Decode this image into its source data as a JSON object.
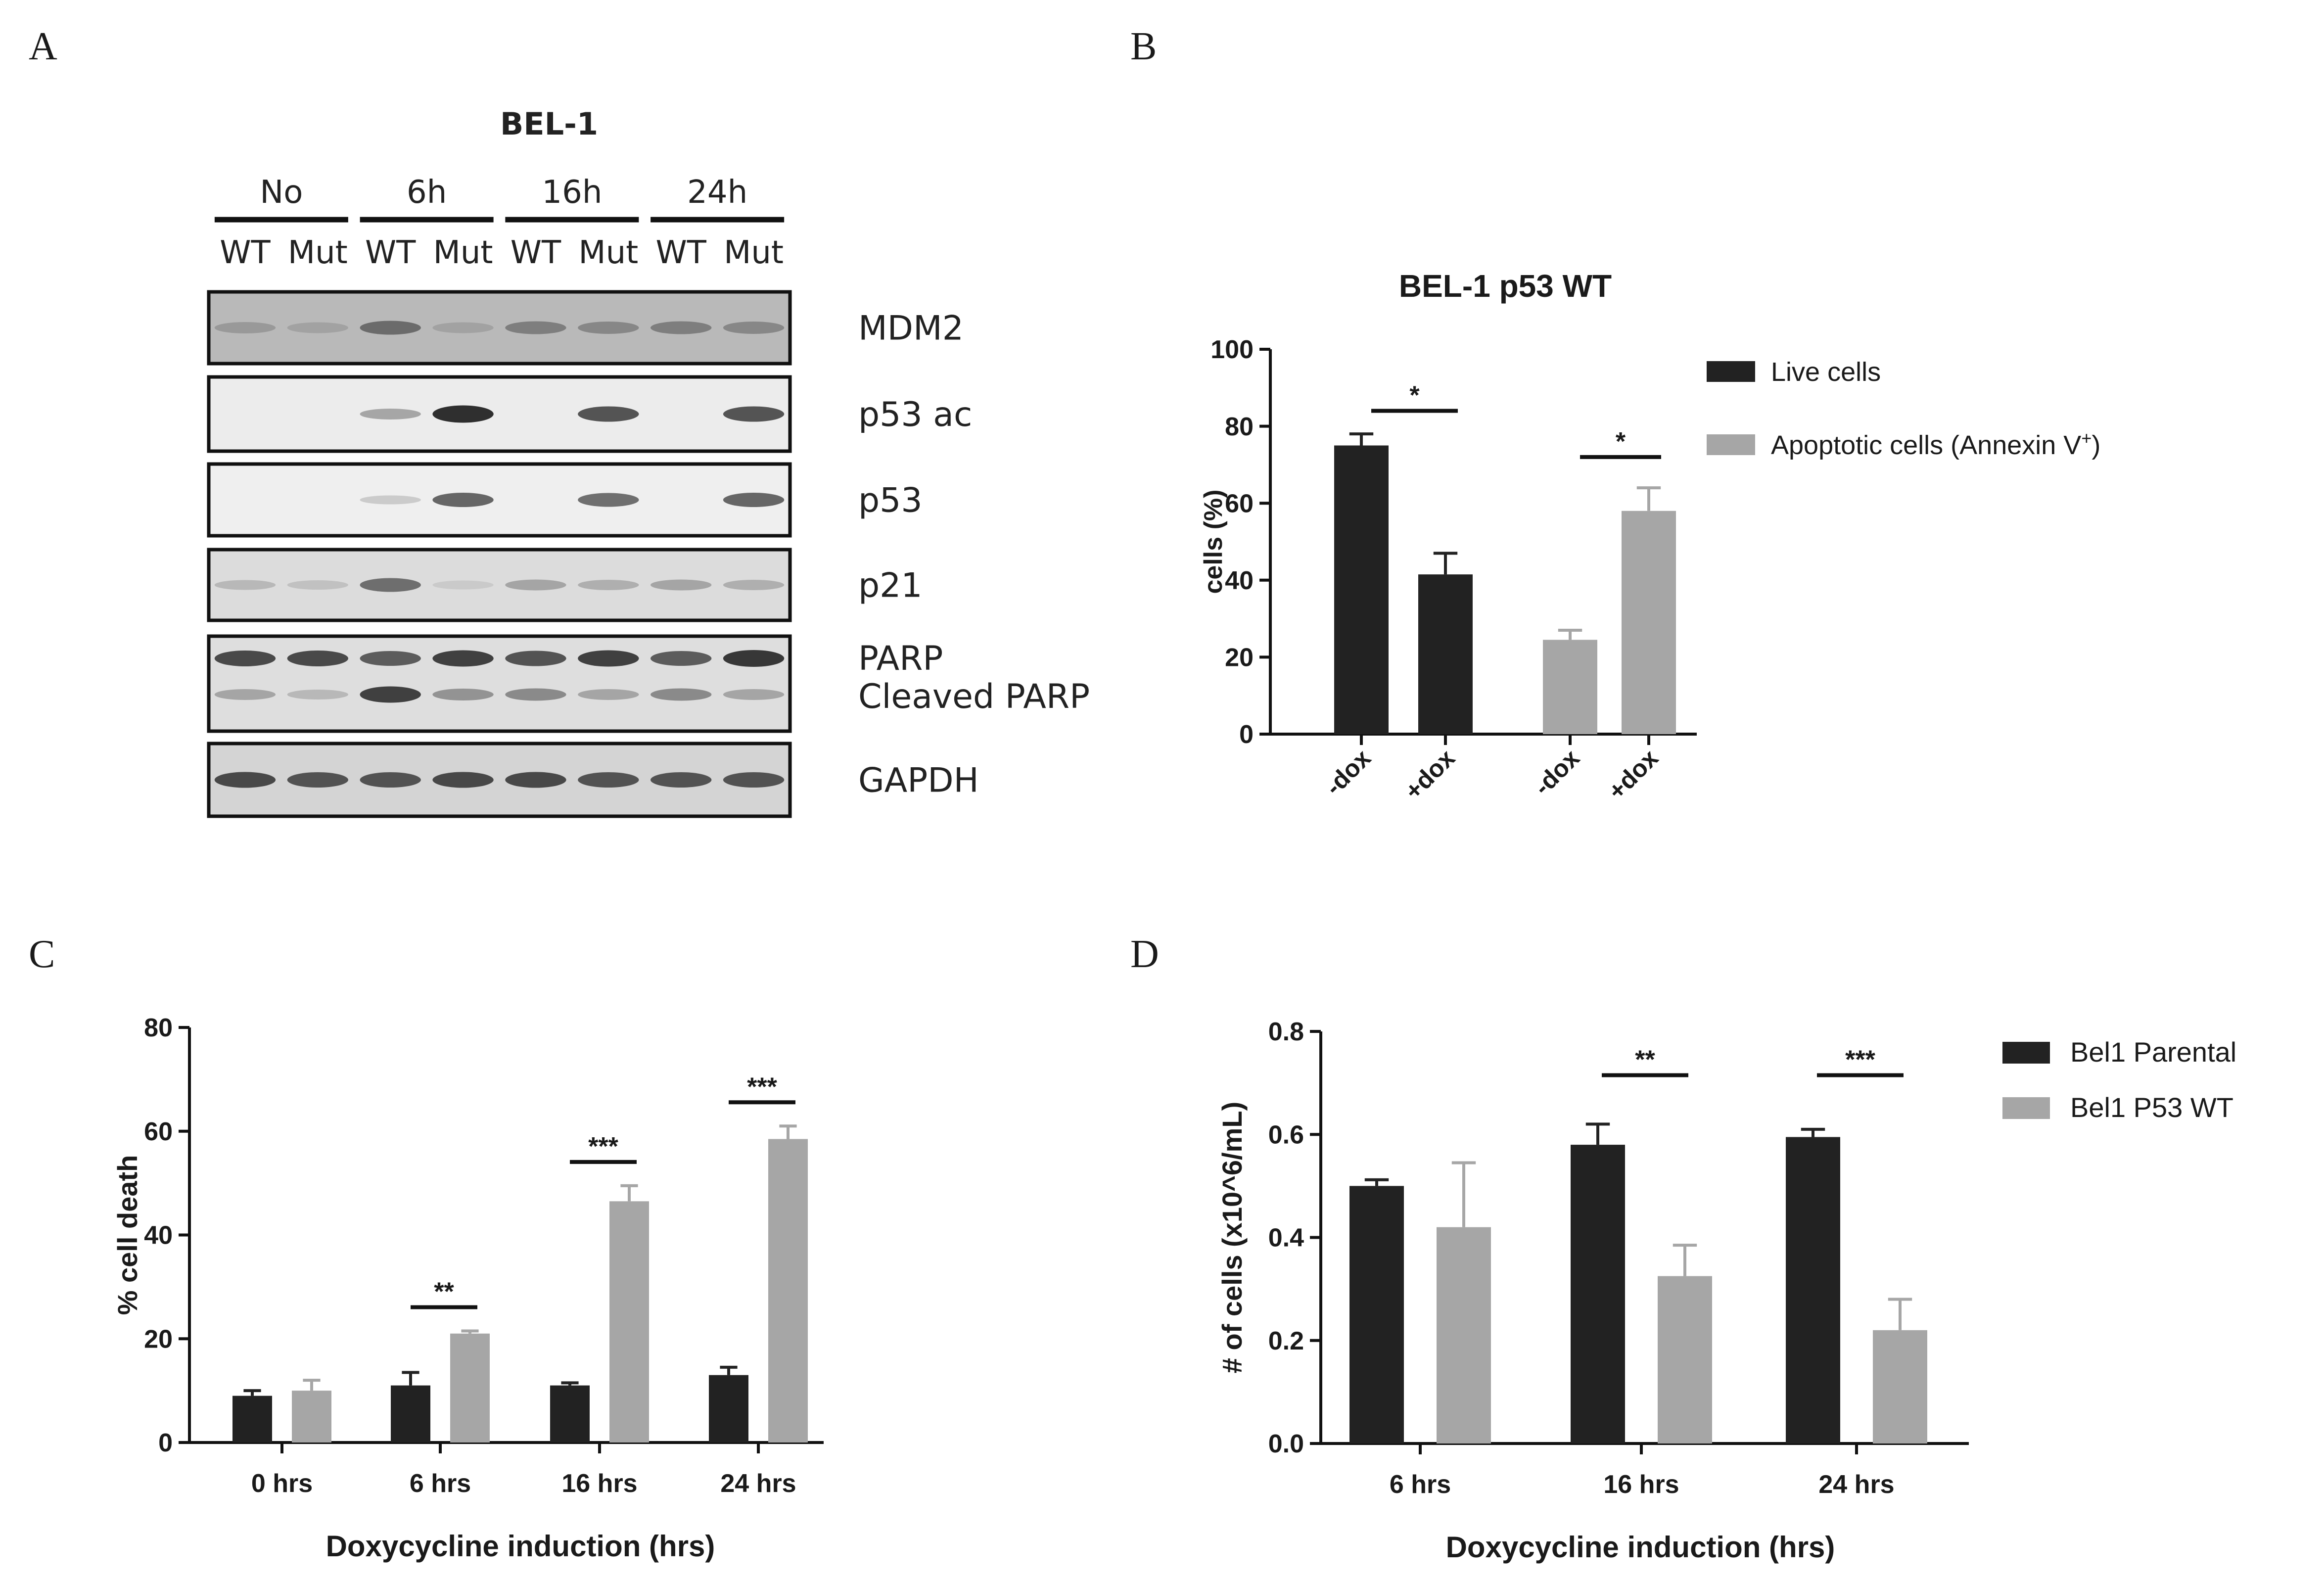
{
  "panels": {
    "a": {
      "letter": "A"
    },
    "b": {
      "letter": "B"
    },
    "c": {
      "letter": "C"
    },
    "d": {
      "letter": "D"
    }
  },
  "blot": {
    "title": "BEL-1",
    "time_points": [
      "No",
      "6h",
      "16h",
      "24h"
    ],
    "lane_labels": [
      "WT",
      "Mut",
      "WT",
      "Mut",
      "WT",
      "Mut",
      "WT",
      "Mut"
    ],
    "rows": [
      {
        "label": "MDM2",
        "bg": "#b9b9b9",
        "bands": [
          0.35,
          0.3,
          0.6,
          0.3,
          0.5,
          0.45,
          0.5,
          0.45
        ]
      },
      {
        "label": "p53 ac",
        "bg": "#ececec",
        "bands": [
          0.0,
          0.0,
          0.3,
          0.95,
          0.0,
          0.75,
          0.0,
          0.75
        ]
      },
      {
        "label": "p53",
        "bg": "#efefef",
        "bands": [
          0.0,
          0.0,
          0.1,
          0.65,
          0.0,
          0.6,
          0.0,
          0.65
        ]
      },
      {
        "label": "p21",
        "bg": "#dcdcdc",
        "bands": [
          0.2,
          0.15,
          0.6,
          0.1,
          0.3,
          0.25,
          0.3,
          0.25
        ]
      },
      {
        "label": "PARP",
        "label2": "Cleaved PARP",
        "bg": "#dedede",
        "bands": [
          0.8,
          0.8,
          0.7,
          0.85,
          0.75,
          0.85,
          0.7,
          0.9
        ],
        "bands2": [
          0.3,
          0.2,
          0.85,
          0.4,
          0.45,
          0.3,
          0.45,
          0.3
        ]
      },
      {
        "label": "GAPDH",
        "bg": "#d4d4d4",
        "bands": [
          0.8,
          0.75,
          0.75,
          0.8,
          0.8,
          0.75,
          0.75,
          0.75
        ]
      }
    ]
  },
  "chart_data": [
    {
      "panel": "B",
      "type": "bar",
      "title": "BEL-1 p53 WT",
      "ylabel": "cells (%)",
      "xlabel": "",
      "ylim": [
        0,
        100
      ],
      "yticks": [
        0,
        20,
        40,
        60,
        80,
        100
      ],
      "groups": [
        {
          "name": "Live cells",
          "color": "#222222",
          "categories": [
            "-dox",
            "+dox"
          ],
          "values": [
            75,
            41.5
          ],
          "errors": [
            3,
            5.5
          ],
          "significance": "*"
        },
        {
          "name": "Apoptotic cells (Annexin V",
          "name_sup": "+",
          "name_close": ")",
          "color": "#a6a6a6",
          "categories": [
            "-dox",
            "+dox"
          ],
          "values": [
            24.5,
            58
          ],
          "errors": [
            2.5,
            6
          ],
          "significance": "*"
        }
      ],
      "legend": "right"
    },
    {
      "panel": "C",
      "type": "bar",
      "title": "",
      "ylabel": "% cell death",
      "xlabel": "Doxycycline induction (hrs)",
      "ylim": [
        0,
        80
      ],
      "yticks": [
        0,
        20,
        40,
        60,
        80
      ],
      "categories": [
        "0 hrs",
        "6 hrs",
        "16 hrs",
        "24 hrs"
      ],
      "series": [
        {
          "color": "#222222",
          "values": [
            9,
            11,
            11,
            13
          ],
          "errors": [
            1,
            2.5,
            0.5,
            1.5
          ]
        },
        {
          "color": "#a6a6a6",
          "values": [
            10,
            21,
            46.5,
            58.5
          ],
          "errors": [
            2,
            0.5,
            3,
            2.5
          ]
        }
      ],
      "significance": [
        "",
        "**",
        "***",
        "***"
      ]
    },
    {
      "panel": "D",
      "type": "bar",
      "title": "",
      "ylabel": "# of cells (x10^6/mL)",
      "xlabel": "Doxycycline induction (hrs)",
      "ylim": [
        0,
        0.8
      ],
      "yticks": [
        "0.0",
        "0.2",
        "0.4",
        "0.6",
        "0.8"
      ],
      "categories": [
        "6 hrs",
        "16 hrs",
        "24 hrs"
      ],
      "series": [
        {
          "name": "Bel1 Parental",
          "color": "#222222",
          "values": [
            0.5,
            0.58,
            0.595
          ],
          "errors": [
            0.012,
            0.04,
            0.015
          ]
        },
        {
          "name": "Bel1 P53 WT",
          "color": "#a6a6a6",
          "values": [
            0.42,
            0.325,
            0.22
          ],
          "errors": [
            0.125,
            0.06,
            0.06
          ]
        }
      ],
      "significance": [
        "",
        "**",
        "***"
      ],
      "legend": "right"
    }
  ]
}
